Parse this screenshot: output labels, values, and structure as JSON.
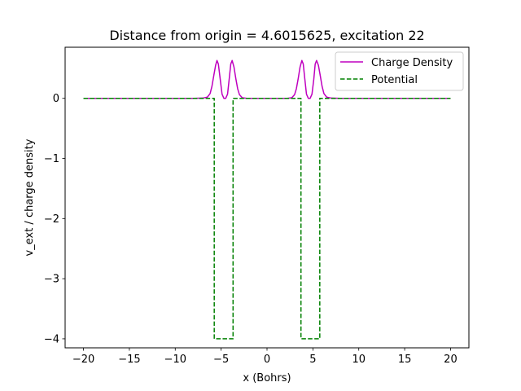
{
  "chart_data": {
    "type": "line",
    "title": "Distance from origin = 4.6015625, excitation 22",
    "xlabel": "x (Bohrs)",
    "ylabel": "v_ext / charge density",
    "xlim": [
      -22,
      22
    ],
    "ylim": [
      -4.15,
      0.85
    ],
    "xticks": [
      -20,
      -15,
      -10,
      -5,
      0,
      5,
      10,
      15,
      20
    ],
    "xtick_labels": [
      "−20",
      "−15",
      "−10",
      "−5",
      "0",
      "5",
      "10",
      "15",
      "20"
    ],
    "yticks": [
      0,
      -1,
      -2,
      -3,
      -4
    ],
    "ytick_labels": [
      "0",
      "−1",
      "−2",
      "−3",
      "−4"
    ],
    "grid": false,
    "legend_position": "top-right",
    "series": [
      {
        "name": "Charge Density",
        "color": "#bf00bf",
        "style": "solid",
        "x": [
          -20,
          -8.0,
          -7.0,
          -6.5,
          -6.2,
          -6.0,
          -5.8,
          -5.6,
          -5.45,
          -5.3,
          -5.1,
          -4.9,
          -4.7,
          -4.6,
          -4.5,
          -4.3,
          -4.1,
          -3.95,
          -3.8,
          -3.6,
          -3.4,
          -3.2,
          -3.0,
          -2.7,
          -2.2,
          2.2,
          2.7,
          3.0,
          3.2,
          3.4,
          3.6,
          3.8,
          3.95,
          4.1,
          4.3,
          4.5,
          4.6,
          4.7,
          4.9,
          5.1,
          5.25,
          5.4,
          5.6,
          5.8,
          6.0,
          6.2,
          6.5,
          7.0,
          8.0,
          20
        ],
        "y": [
          0,
          0,
          0.004,
          0.02,
          0.08,
          0.2,
          0.38,
          0.55,
          0.63,
          0.57,
          0.32,
          0.07,
          0.0,
          0.0,
          0.0,
          0.07,
          0.35,
          0.57,
          0.63,
          0.52,
          0.33,
          0.16,
          0.06,
          0.01,
          0,
          0,
          0.01,
          0.06,
          0.16,
          0.33,
          0.52,
          0.63,
          0.57,
          0.35,
          0.07,
          0.0,
          0.0,
          0.0,
          0.07,
          0.32,
          0.57,
          0.63,
          0.55,
          0.38,
          0.2,
          0.08,
          0.02,
          0.004,
          0,
          0
        ]
      },
      {
        "name": "Potential",
        "color": "#008000",
        "style": "dashed",
        "x": [
          -20,
          -5.75,
          -5.75,
          -3.7,
          -3.7,
          3.7,
          3.7,
          5.75,
          5.75,
          20
        ],
        "y": [
          0,
          0,
          -4,
          -4,
          0,
          0,
          -4,
          -4,
          0,
          0
        ]
      }
    ]
  }
}
